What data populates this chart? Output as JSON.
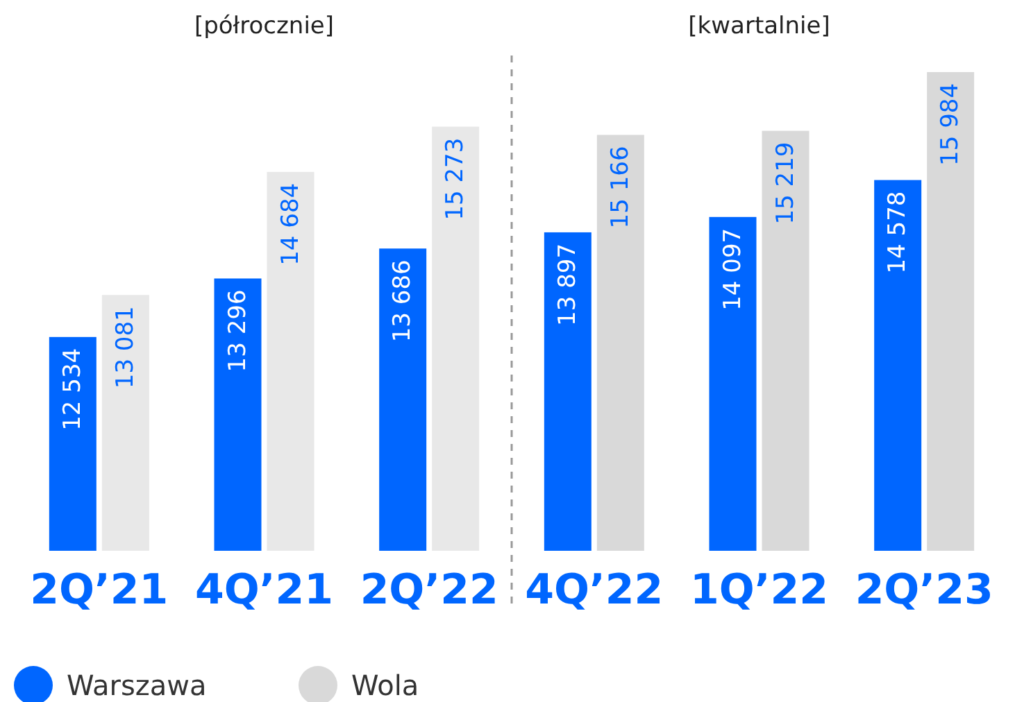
{
  "chart_data": {
    "type": "bar",
    "categories": [
      "2Q’21",
      "4Q’21",
      "2Q’22",
      "4Q’22",
      "1Q’22",
      "2Q’23"
    ],
    "series": [
      {
        "name": "Warszawa",
        "color": "#0066ff",
        "values": [
          12534,
          13296,
          13686,
          13897,
          14097,
          14578
        ],
        "value_labels": [
          "12 534",
          "13 296",
          "13 686",
          "13 897",
          "14 097",
          "14 578"
        ]
      },
      {
        "name": "Wola",
        "color": "#d9d9d9",
        "colors": [
          "#e8e8e8",
          "#e8e8e8",
          "#e8e8e8",
          "#d9d9d9",
          "#d9d9d9",
          "#d9d9d9"
        ],
        "values": [
          13081,
          14684,
          15273,
          15166,
          15219,
          15984
        ],
        "value_labels": [
          "13 081",
          "14 684",
          "15 273",
          "15 166",
          "15 219",
          "15 984"
        ]
      }
    ],
    "ylim": [
      9750,
      16200
    ],
    "tick_labels": "x",
    "legend": "bottom left",
    "annotations": [
      "[półrocznie]",
      "[kwartalnie]"
    ]
  }
}
